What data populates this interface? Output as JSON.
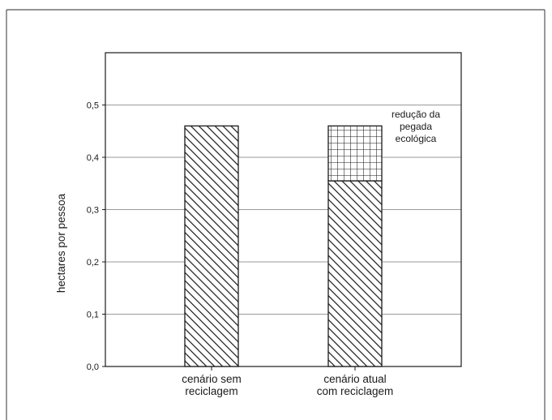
{
  "chart_data": {
    "type": "bar",
    "stacked": true,
    "categories": [
      "cenário sem reciclagem",
      "cenário atual com reciclagem"
    ],
    "category_lines": [
      [
        "cenário sem",
        "reciclagem"
      ],
      [
        "cenário atual",
        "com reciclagem"
      ]
    ],
    "series": [
      {
        "name": "",
        "pattern": "diagonal-hatch",
        "values": [
          0.46,
          0.355
        ]
      },
      {
        "name": "redução da pegada ecológica",
        "pattern": "grid-hatch",
        "values": [
          0,
          0.105
        ]
      }
    ],
    "ylabel": "hectares por pessoa",
    "xlabel": "",
    "title": "",
    "ylim": [
      0,
      0.6
    ],
    "yticks": [
      0.0,
      0.1,
      0.2,
      0.3,
      0.4,
      0.5
    ],
    "ytick_labels": [
      "0,0",
      "0,1",
      "0,2",
      "0,3",
      "0,4",
      "0,5"
    ],
    "grid": true,
    "annotation": {
      "lines": [
        "redução da",
        "pegada",
        "ecológica"
      ],
      "points_to": "grid-hatch segment of second bar"
    },
    "colors": {
      "stroke": "#1a1a1a",
      "grid": "#9a9a9a",
      "background": "#ffffff"
    }
  }
}
